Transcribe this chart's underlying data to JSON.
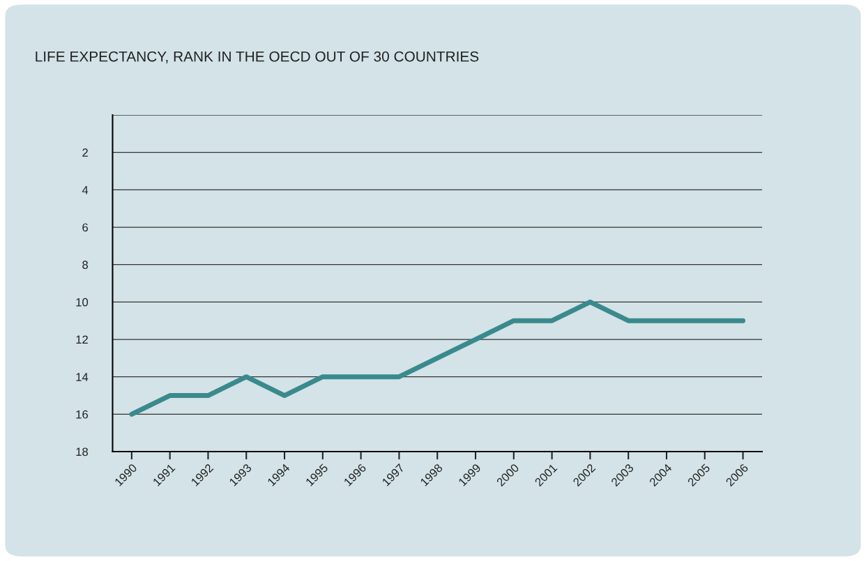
{
  "chart_data": {
    "type": "line",
    "title": "LIFE EXPECTANCY, RANK IN THE OECD OUT OF 30 COUNTRIES",
    "categories": [
      "1990",
      "1991",
      "1992",
      "1993",
      "1994",
      "1995",
      "1996",
      "1997",
      "1998",
      "1999",
      "2000",
      "2001",
      "2002",
      "2003",
      "2004",
      "2005",
      "2006"
    ],
    "series": [
      {
        "color": "#3a8a8d",
        "values": [
          16,
          15,
          15,
          14,
          15,
          14,
          14,
          14,
          13,
          12,
          11,
          11,
          10,
          11,
          11,
          11,
          11
        ]
      }
    ],
    "ylim": [
      18,
      0
    ],
    "yticks": [
      {
        "value": 0,
        "label": null
      },
      2,
      4,
      6,
      8,
      10,
      12,
      14,
      16,
      18
    ],
    "grid": "y",
    "legend": false,
    "marker": "none",
    "line_style": "solid"
  }
}
